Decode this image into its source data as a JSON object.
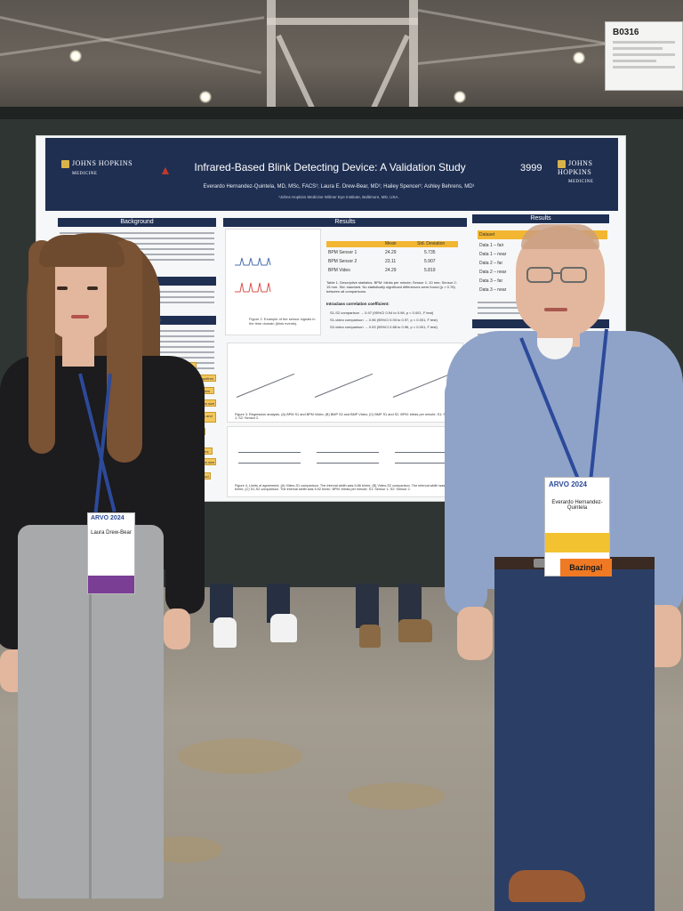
{
  "scene": {
    "booth_sign": {
      "code": "B0316"
    }
  },
  "poster": {
    "institution_left": "JOHNS HOPKINS",
    "institution_left_sub": "MEDICINE",
    "institution_right": "JOHNS HOPKINS",
    "institution_right_sub": "MEDICINE",
    "title": "Infrared-Based Blink Detecting Device: A Validation Study",
    "number": "3999",
    "authors": "Everardo Hernandez-Quintela, MD, MSc, FACS¹; Laura E. Drew-Bear, MD¹; Hailey Spencer¹; Ashley Behrens, MD¹",
    "affiliation": "¹Johns Hopkins Medicine Wilmer Eye Institute, Baltimore, MD, USA.",
    "sections": {
      "background": "Background",
      "objective": "Objective",
      "methods": "ials and Methods",
      "results_center": "Results",
      "results_right": "Results"
    },
    "results_table": {
      "headers": [
        "Mean",
        "Std. Deviation"
      ],
      "rows": [
        {
          "label": "BPM Sensor 1",
          "mean": "24.29",
          "sd": "5.735"
        },
        {
          "label": "BPM Sensor 2",
          "mean": "23.11",
          "sd": "5.907"
        },
        {
          "label": "BPM Video",
          "mean": "24.29",
          "sd": "5.819"
        }
      ],
      "caption": "Table 1. Descriptive statistics. BPM: blinks per minute; Sensor 1: 10 mm; Sensor 2: 15 mm. Std. standard. No statistically significant differences were found (p > 0.78) between all comparisons."
    },
    "correlation": {
      "heading": "Intraclass correlation coefficient:",
      "items": [
        "S1-S2 comparison → 0.97 (95%CI 0.94 to 0.98, p < 0.001, F test)",
        "S1-video comparison → 0.96 (95%CI 0.93 to 0.97, p < 0.001, F test)",
        "S2-video comparison → 0.93 (95%CI 0.88 to 0.96, p < 0.001, F test)"
      ]
    },
    "figure_captions": {
      "fig2": "Figure 2. Example of the sensor signals in the time domain (blink events).",
      "fig3": "Figure 3. Regression analysis. (A) BPM S1 and BPM Video; (B) BMP S2 and BMP Video; (C) BMP S1 and S2. BPM: blinks per minute; S1: Sensor 1; S2: Sensor 2.",
      "fig4": "Figure 4. Limits of agreement. (A) Video-S1 comparison. The interval width was 6.86 b/min; (B) Video-S2 comparison. The interval width was 8.12 b/min; (C) S1-S2 comparison. The interval width was 5.92 b/min. BPM: blinks per minute; S1: Sensor 1, S2: Sensor 2."
    },
    "flow_steps": [
      "Study",
      "Define blink detection algorithm",
      "Define search parameters",
      "Threshold",
      "Window size",
      "Parameter selection and validation",
      "Best window size",
      "No",
      "Optimal parameters",
      "Threshold",
      "Window size",
      "Evaluation method"
    ],
    "right_results_rows": [
      "Dataset",
      "Data 1 – fair",
      "Data 1 – near",
      "Data 2 – far",
      "Data 2 – near",
      "Data 3 – far",
      "Data 3 – near"
    ]
  },
  "badges": {
    "left_person": {
      "event": "ARVO 2024",
      "name": "Laura Drew-Bear"
    },
    "right_person": {
      "event": "ARVO 2024",
      "name": "Everardo Hernandez-Quintela",
      "ribbon": "Bazinga!"
    }
  }
}
